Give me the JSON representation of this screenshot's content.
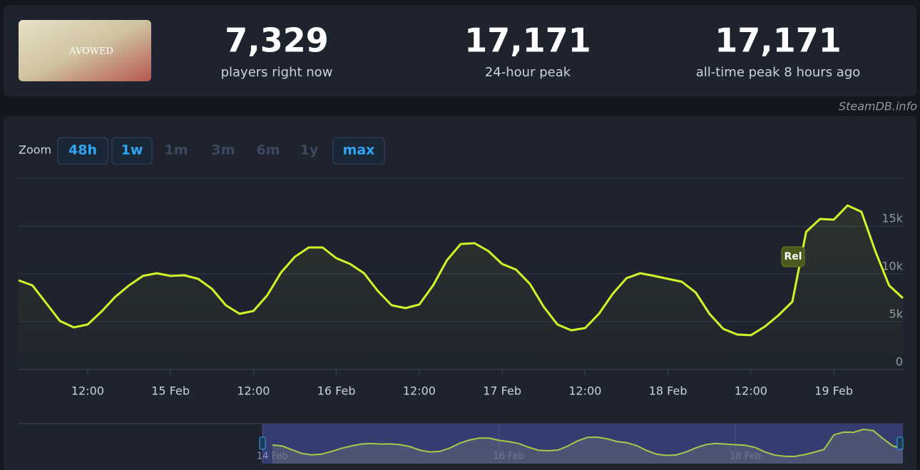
{
  "header": {
    "game_logo": "AVOWED",
    "stats": [
      {
        "value": "7,329",
        "label": "players right now"
      },
      {
        "value": "17,171",
        "label": "24-hour peak"
      },
      {
        "value": "17,171",
        "label": "all-time peak 8 hours ago"
      }
    ]
  },
  "watermark": "SteamDB.info",
  "zoom": {
    "label": "Zoom",
    "buttons": [
      "48h",
      "1w",
      "1m",
      "3m",
      "6m",
      "1y",
      "max"
    ],
    "enabled": [
      true,
      true,
      false,
      false,
      false,
      false,
      true
    ]
  },
  "chart_data": {
    "type": "line",
    "color": "#d2f52a",
    "x": [
      "14 Feb 02:00",
      "14 Feb 04:00",
      "14 Feb 06:00",
      "14 Feb 08:00",
      "14 Feb 10:00",
      "14 Feb 12:00",
      "14 Feb 14:00",
      "14 Feb 16:00",
      "14 Feb 18:00",
      "14 Feb 20:00",
      "14 Feb 22:00",
      "15 Feb 00:00",
      "15 Feb 02:00",
      "15 Feb 04:00",
      "15 Feb 06:00",
      "15 Feb 08:00",
      "15 Feb 10:00",
      "15 Feb 12:00",
      "15 Feb 14:00",
      "15 Feb 16:00",
      "15 Feb 18:00",
      "15 Feb 20:00",
      "15 Feb 22:00",
      "16 Feb 00:00",
      "16 Feb 02:00",
      "16 Feb 04:00",
      "16 Feb 06:00",
      "16 Feb 08:00",
      "16 Feb 10:00",
      "16 Feb 12:00",
      "16 Feb 14:00",
      "16 Feb 16:00",
      "16 Feb 18:00",
      "16 Feb 20:00",
      "16 Feb 22:00",
      "17 Feb 00:00",
      "17 Feb 02:00",
      "17 Feb 04:00",
      "17 Feb 06:00",
      "17 Feb 08:00",
      "17 Feb 10:00",
      "17 Feb 12:00",
      "17 Feb 14:00",
      "17 Feb 16:00",
      "17 Feb 18:00",
      "17 Feb 20:00",
      "17 Feb 22:00",
      "18 Feb 00:00",
      "18 Feb 02:00",
      "18 Feb 04:00",
      "18 Feb 06:00",
      "18 Feb 08:00",
      "18 Feb 10:00",
      "18 Feb 12:00",
      "18 Feb 14:00",
      "18 Feb 16:00",
      "18 Feb 18:00",
      "18 Feb 20:00",
      "18 Feb 22:00",
      "19 Feb 00:00",
      "19 Feb 02:00",
      "19 Feb 04:00",
      "19 Feb 06:00",
      "19 Feb 08:00",
      "19 Feb 10:00"
    ],
    "values": [
      9330,
      8800,
      6940,
      5070,
      4400,
      4700,
      6050,
      7600,
      8800,
      9780,
      10070,
      9780,
      9850,
      9480,
      8430,
      6720,
      5820,
      6120,
      7760,
      10150,
      11790,
      12760,
      12760,
      11640,
      11040,
      10070,
      8210,
      6720,
      6420,
      6790,
      8800,
      11420,
      13130,
      13210,
      12390,
      11040,
      10450,
      8960,
      6570,
      4700,
      4100,
      4330,
      5820,
      7910,
      9550,
      10070,
      9780,
      9480,
      9180,
      8060,
      5820,
      4250,
      3660,
      3580,
      4480,
      5670,
      7090,
      14400,
      15750,
      15670,
      17160,
      16490,
      12390,
      8800,
      7460
    ],
    "xlim": [
      "14 Feb 02:00",
      "19 Feb 10:00"
    ],
    "xticks": [
      {
        "value": "14 Feb 12:00",
        "label": "12:00"
      },
      {
        "value": "15 Feb 00:00",
        "label": "15 Feb"
      },
      {
        "value": "15 Feb 12:00",
        "label": "12:00"
      },
      {
        "value": "16 Feb 00:00",
        "label": "16 Feb"
      },
      {
        "value": "16 Feb 12:00",
        "label": "12:00"
      },
      {
        "value": "17 Feb 00:00",
        "label": "17 Feb"
      },
      {
        "value": "17 Feb 12:00",
        "label": "12:00"
      },
      {
        "value": "18 Feb 00:00",
        "label": "18 Feb"
      },
      {
        "value": "18 Feb 12:00",
        "label": "12:00"
      },
      {
        "value": "19 Feb 00:00",
        "label": "19 Feb"
      }
    ],
    "ylim": [
      0,
      20000
    ],
    "yticks": [
      {
        "value": 0,
        "label": "0"
      },
      {
        "value": 5000,
        "label": "5k"
      },
      {
        "value": 10000,
        "label": "10k"
      },
      {
        "value": 15000,
        "label": "15k"
      }
    ],
    "grid": true,
    "annotations": [
      {
        "text": "Rel",
        "x": "18 Feb 18:00"
      }
    ],
    "navigator": {
      "xlim": [
        "14 Feb 00:00",
        "19 Feb 10:00"
      ],
      "xticks": [
        {
          "value": "14 Feb 00:00",
          "label": "14 Feb"
        },
        {
          "value": "16 Feb 00:00",
          "label": "16 Feb"
        },
        {
          "value": "18 Feb 00:00",
          "label": "18 Feb"
        }
      ]
    }
  }
}
